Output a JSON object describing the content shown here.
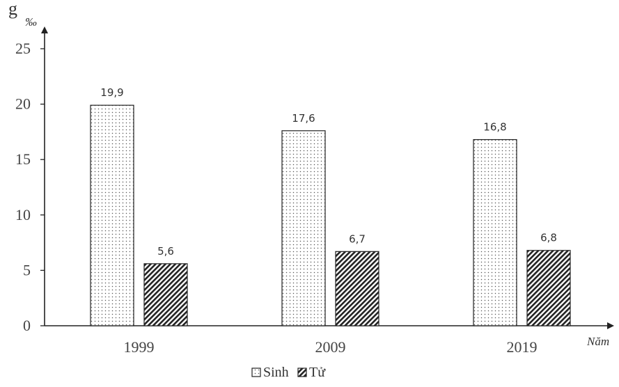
{
  "header_fragment": "g",
  "chart_data": {
    "type": "bar",
    "categories": [
      "1999",
      "2009",
      "2019"
    ],
    "series": [
      {
        "name": "Sinh",
        "values": [
          19.9,
          17.6,
          16.8
        ],
        "value_labels": [
          "19,9",
          "17,6",
          "16,8"
        ],
        "pattern": "dots"
      },
      {
        "name": "Tử",
        "values": [
          5.6,
          6.7,
          6.8
        ],
        "value_labels": [
          "5,6",
          "6,7",
          "6,8"
        ],
        "pattern": "hatch"
      }
    ],
    "yunit": "‰",
    "xlabel": "Năm",
    "ylim": [
      0,
      25
    ],
    "yticks": [
      0,
      5,
      10,
      15,
      20,
      25
    ],
    "grid": false,
    "legend_position": "bottom-center"
  }
}
